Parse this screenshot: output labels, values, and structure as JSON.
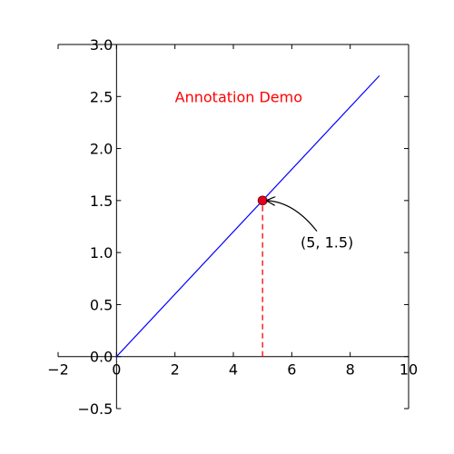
{
  "chart_data": {
    "type": "line",
    "title": "",
    "xlabel": "",
    "ylabel": "",
    "xlim": [
      -2,
      10
    ],
    "ylim": [
      -0.5,
      3.0
    ],
    "x_ticks": [
      -2,
      0,
      2,
      4,
      6,
      8,
      10
    ],
    "y_ticks": [
      -0.5,
      0.0,
      0.5,
      1.0,
      1.5,
      2.0,
      2.5,
      3.0
    ],
    "x_tick_labels": [
      "−2",
      "0",
      "2",
      "4",
      "6",
      "8",
      "10"
    ],
    "y_tick_labels": [
      "−0.5",
      "0.0",
      "0.5",
      "1.0",
      "1.5",
      "2.0",
      "2.5",
      "3.0"
    ],
    "grid": false,
    "series": [
      {
        "x": [
          0,
          9
        ],
        "y": [
          0,
          2.7
        ],
        "color": "#0000ff"
      }
    ],
    "point": {
      "x": 5,
      "y": 1.5,
      "color": "#e0001b"
    },
    "dropline": {
      "x": 5,
      "y_from": 0,
      "y_to": 1.5,
      "color": "#ff0000"
    },
    "annotation_text": {
      "text": "Annotation Demo",
      "x": 2,
      "y": 2.5,
      "color": "#ff0000"
    },
    "annotation_point_label": {
      "text": "(5, 1.5)",
      "x": 6.3,
      "y": 1.1
    }
  }
}
